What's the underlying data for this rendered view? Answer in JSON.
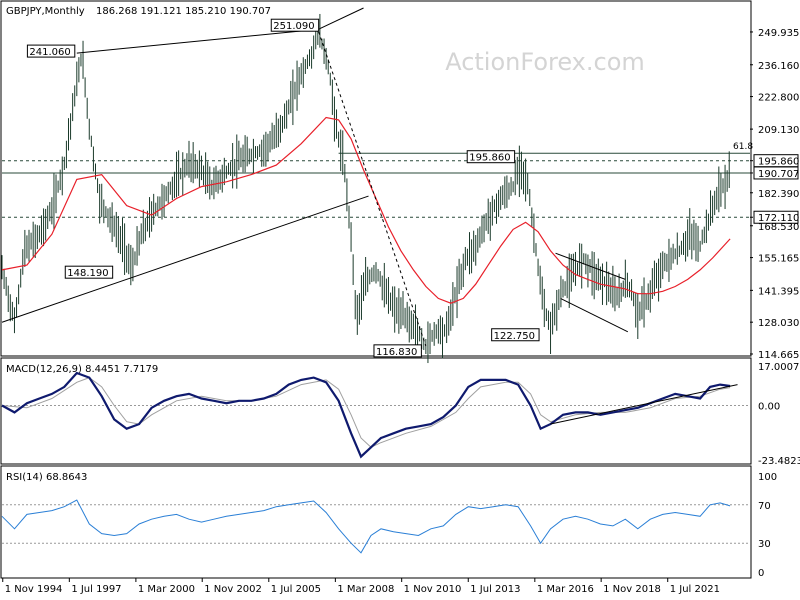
{
  "header": {
    "symbol_label": "GBPJPY,Monthly",
    "ohlc": "186.268 191.121 185.210 190.707"
  },
  "watermark": "ActionForex.com",
  "colors": {
    "price": "#1a3a2a",
    "ma": "#e8202a",
    "macd": "#0f1a6e",
    "signal": "#a0a0a0",
    "rsi": "#2a7fd6",
    "hline": "#2a4a3a"
  },
  "chart_data": [
    {
      "type": "ohlc",
      "title": "GBPJPY,Monthly",
      "ylim": [
        114.665,
        260
      ],
      "y_ticks": [
        "249.935",
        "236.160",
        "222.800",
        "209.130",
        "195.860",
        "190.707",
        "182.390",
        "172.110",
        "168.530",
        "155.165",
        "141.395",
        "128.030",
        "114.665"
      ],
      "x_ticks": [
        "1 Nov 1994",
        "1 Jul 1997",
        "1 Mar 2000",
        "1 Nov 2002",
        "1 Jul 2005",
        "1 Mar 2008",
        "1 Nov 2010",
        "1 Jul 2013",
        "1 Mar 2016",
        "1 Nov 2018",
        "1 Jul 2021"
      ],
      "levels": [
        {
          "label": "195.860",
          "value": 195.86,
          "style": "dashed"
        },
        {
          "label": "190.707",
          "value": 190.707,
          "style": "solid"
        },
        {
          "label": "172.110",
          "value": 172.11,
          "style": "dashed"
        }
      ],
      "fib_label": "61.8",
      "fib_value": 199.0,
      "annotations": [
        {
          "label": "241.060",
          "x": 1997.8,
          "y": 241.06
        },
        {
          "label": "251.090",
          "x": 2007.5,
          "y": 251.09
        },
        {
          "label": "148.190",
          "x": 1999.8,
          "y": 148.19
        },
        {
          "label": "116.830",
          "x": 2011.7,
          "y": 116.83
        },
        {
          "label": "195.860",
          "x": 2015.6,
          "y": 195.86
        },
        {
          "label": "122.750",
          "x": 2016.5,
          "y": 122.75
        }
      ],
      "price_path": [
        [
          1994.8,
          150
        ],
        [
          1995.3,
          128
        ],
        [
          1995.7,
          158
        ],
        [
          1996.3,
          165
        ],
        [
          1996.8,
          175
        ],
        [
          1997.3,
          195
        ],
        [
          1997.7,
          222
        ],
        [
          1998.0,
          241
        ],
        [
          1998.3,
          210
        ],
        [
          1998.7,
          180
        ],
        [
          1999.2,
          170
        ],
        [
          1999.7,
          160
        ],
        [
          2000.0,
          150
        ],
        [
          2000.4,
          165
        ],
        [
          2000.9,
          175
        ],
        [
          2001.3,
          180
        ],
        [
          2001.8,
          188
        ],
        [
          2002.3,
          195
        ],
        [
          2002.8,
          192
        ],
        [
          2003.2,
          185
        ],
        [
          2003.7,
          190
        ],
        [
          2004.2,
          195
        ],
        [
          2004.7,
          198
        ],
        [
          2005.2,
          200
        ],
        [
          2005.7,
          205
        ],
        [
          2006.2,
          215
        ],
        [
          2006.7,
          230
        ],
        [
          2007.2,
          240
        ],
        [
          2007.5,
          250
        ],
        [
          2007.9,
          235
        ],
        [
          2008.2,
          210
        ],
        [
          2008.5,
          195
        ],
        [
          2008.8,
          165
        ],
        [
          2009.0,
          130
        ],
        [
          2009.4,
          145
        ],
        [
          2009.8,
          150
        ],
        [
          2010.2,
          140
        ],
        [
          2010.6,
          133
        ],
        [
          2011.0,
          130
        ],
        [
          2011.4,
          125
        ],
        [
          2011.8,
          118
        ],
        [
          2012.2,
          125
        ],
        [
          2012.6,
          124
        ],
        [
          2013.0,
          140
        ],
        [
          2013.4,
          155
        ],
        [
          2013.8,
          160
        ],
        [
          2014.3,
          172
        ],
        [
          2014.8,
          180
        ],
        [
          2015.3,
          185
        ],
        [
          2015.6,
          195
        ],
        [
          2015.9,
          185
        ],
        [
          2016.2,
          160
        ],
        [
          2016.5,
          135
        ],
        [
          2016.8,
          125
        ],
        [
          2017.2,
          140
        ],
        [
          2017.7,
          148
        ],
        [
          2018.1,
          155
        ],
        [
          2018.6,
          148
        ],
        [
          2019.0,
          145
        ],
        [
          2019.4,
          138
        ],
        [
          2019.9,
          145
        ],
        [
          2020.3,
          132
        ],
        [
          2020.7,
          138
        ],
        [
          2021.2,
          150
        ],
        [
          2021.6,
          155
        ],
        [
          2022.0,
          158
        ],
        [
          2022.4,
          165
        ],
        [
          2022.8,
          160
        ],
        [
          2023.1,
          170
        ],
        [
          2023.5,
          182
        ],
        [
          2023.8,
          186
        ],
        [
          2024.0,
          190
        ]
      ],
      "ma_path": [
        [
          1994.8,
          150
        ],
        [
          1995.8,
          152
        ],
        [
          1996.8,
          165
        ],
        [
          1997.8,
          188
        ],
        [
          1998.8,
          190
        ],
        [
          1999.8,
          177
        ],
        [
          2000.8,
          173
        ],
        [
          2001.8,
          180
        ],
        [
          2002.8,
          185
        ],
        [
          2003.8,
          187
        ],
        [
          2004.8,
          190
        ],
        [
          2005.8,
          194
        ],
        [
          2006.8,
          203
        ],
        [
          2007.8,
          214
        ],
        [
          2008.3,
          213
        ],
        [
          2008.8,
          205
        ],
        [
          2009.3,
          192
        ],
        [
          2009.8,
          180
        ],
        [
          2010.3,
          168
        ],
        [
          2010.8,
          158
        ],
        [
          2011.3,
          150
        ],
        [
          2011.8,
          143
        ],
        [
          2012.3,
          138
        ],
        [
          2012.8,
          136
        ],
        [
          2013.3,
          138
        ],
        [
          2013.8,
          144
        ],
        [
          2014.3,
          152
        ],
        [
          2014.8,
          160
        ],
        [
          2015.3,
          167
        ],
        [
          2015.8,
          170
        ],
        [
          2016.3,
          166
        ],
        [
          2016.8,
          158
        ],
        [
          2017.3,
          152
        ],
        [
          2017.8,
          148
        ],
        [
          2018.3,
          146
        ],
        [
          2018.8,
          144
        ],
        [
          2019.3,
          143
        ],
        [
          2019.8,
          142
        ],
        [
          2020.3,
          140
        ],
        [
          2020.8,
          140
        ],
        [
          2021.3,
          141
        ],
        [
          2021.8,
          143
        ],
        [
          2022.3,
          146
        ],
        [
          2022.8,
          150
        ],
        [
          2023.3,
          155
        ],
        [
          2024.0,
          163
        ]
      ],
      "trend_lines": [
        {
          "from": [
            1997.8,
            241.06
          ],
          "to": [
            2007.5,
            251.09
          ],
          "style": "solid"
        },
        {
          "from": [
            2007.5,
            251.09
          ],
          "to": [
            2009.3,
            260
          ],
          "style": "solid"
        },
        {
          "from": [
            1994.8,
            128
          ],
          "to": [
            2009.5,
            181
          ],
          "style": "solid"
        },
        {
          "from": [
            2007.5,
            250
          ],
          "to": [
            2011.8,
            118
          ],
          "style": "dashed"
        },
        {
          "from": [
            2017.0,
            157
          ],
          "to": [
            2019.8,
            146
          ],
          "style": "solid"
        },
        {
          "from": [
            2017.2,
            138
          ],
          "to": [
            2019.9,
            124
          ],
          "style": "solid"
        }
      ]
    },
    {
      "type": "line",
      "title": "MACD(12,26,9) 8.4451 7.7179",
      "ylim": [
        -23.4823,
        17.0007
      ],
      "y_ticks": [
        "17.0007",
        "0.00",
        "-23.4823"
      ],
      "macd_path": [
        [
          1994.8,
          0
        ],
        [
          1995.3,
          -3
        ],
        [
          1995.8,
          1
        ],
        [
          1996.3,
          3
        ],
        [
          1996.8,
          5
        ],
        [
          1997.3,
          8
        ],
        [
          1997.8,
          14
        ],
        [
          1998.3,
          12
        ],
        [
          1998.8,
          4
        ],
        [
          1999.3,
          -6
        ],
        [
          1999.8,
          -10
        ],
        [
          2000.3,
          -8
        ],
        [
          2000.8,
          -1
        ],
        [
          2001.3,
          2
        ],
        [
          2001.8,
          4
        ],
        [
          2002.3,
          5
        ],
        [
          2002.8,
          3
        ],
        [
          2003.3,
          2
        ],
        [
          2003.8,
          1
        ],
        [
          2004.3,
          2
        ],
        [
          2004.8,
          2
        ],
        [
          2005.3,
          3
        ],
        [
          2005.8,
          5
        ],
        [
          2006.3,
          9
        ],
        [
          2006.8,
          11
        ],
        [
          2007.3,
          12
        ],
        [
          2007.8,
          10
        ],
        [
          2008.3,
          2
        ],
        [
          2008.8,
          -12
        ],
        [
          2009.2,
          -22
        ],
        [
          2009.6,
          -18
        ],
        [
          2010.0,
          -14
        ],
        [
          2010.5,
          -12
        ],
        [
          2011.0,
          -10
        ],
        [
          2011.5,
          -9
        ],
        [
          2012.0,
          -8
        ],
        [
          2012.5,
          -5
        ],
        [
          2013.0,
          0
        ],
        [
          2013.5,
          8
        ],
        [
          2014.0,
          11
        ],
        [
          2014.5,
          11
        ],
        [
          2015.0,
          11
        ],
        [
          2015.5,
          9
        ],
        [
          2016.0,
          0
        ],
        [
          2016.4,
          -10
        ],
        [
          2016.8,
          -8
        ],
        [
          2017.3,
          -4
        ],
        [
          2017.8,
          -3
        ],
        [
          2018.3,
          -3
        ],
        [
          2018.8,
          -4
        ],
        [
          2019.3,
          -3
        ],
        [
          2019.8,
          -2
        ],
        [
          2020.3,
          -1
        ],
        [
          2020.8,
          1
        ],
        [
          2021.3,
          3
        ],
        [
          2021.8,
          5
        ],
        [
          2022.3,
          4
        ],
        [
          2022.8,
          3
        ],
        [
          2023.2,
          8
        ],
        [
          2023.6,
          9
        ],
        [
          2024.0,
          8.4
        ]
      ],
      "signal_path": [
        [
          1994.8,
          0
        ],
        [
          1995.8,
          -1
        ],
        [
          1996.8,
          3
        ],
        [
          1997.8,
          10
        ],
        [
          1998.3,
          12
        ],
        [
          1998.8,
          8
        ],
        [
          1999.3,
          0
        ],
        [
          1999.8,
          -7
        ],
        [
          2000.3,
          -8
        ],
        [
          2000.8,
          -4
        ],
        [
          2001.8,
          2
        ],
        [
          2002.8,
          4
        ],
        [
          2003.8,
          2
        ],
        [
          2004.8,
          2
        ],
        [
          2005.8,
          4
        ],
        [
          2006.8,
          9
        ],
        [
          2007.8,
          11
        ],
        [
          2008.3,
          7
        ],
        [
          2008.8,
          -4
        ],
        [
          2009.2,
          -14
        ],
        [
          2009.6,
          -18
        ],
        [
          2010.0,
          -16
        ],
        [
          2011.0,
          -12
        ],
        [
          2012.0,
          -9
        ],
        [
          2013.0,
          -3
        ],
        [
          2013.5,
          3
        ],
        [
          2014.0,
          8
        ],
        [
          2015.0,
          10
        ],
        [
          2015.5,
          10
        ],
        [
          2016.0,
          5
        ],
        [
          2016.4,
          -4
        ],
        [
          2016.8,
          -7
        ],
        [
          2017.8,
          -4
        ],
        [
          2018.8,
          -3
        ],
        [
          2019.8,
          -3
        ],
        [
          2020.8,
          -1
        ],
        [
          2021.8,
          3
        ],
        [
          2022.8,
          4
        ],
        [
          2023.6,
          7
        ],
        [
          2024.0,
          7.7
        ]
      ],
      "trend_line": {
        "from": [
          2016.8,
          -8
        ],
        "to": [
          2024.3,
          9
        ]
      }
    },
    {
      "type": "line",
      "title": "RSI(14) 68.8643",
      "ylim": [
        0,
        100
      ],
      "y_ticks": [
        "100",
        "70",
        "30",
        "0"
      ],
      "levels": [
        70,
        30
      ],
      "rsi_path": [
        [
          1994.8,
          58
        ],
        [
          1995.3,
          45
        ],
        [
          1995.8,
          60
        ],
        [
          1996.3,
          62
        ],
        [
          1996.8,
          64
        ],
        [
          1997.3,
          68
        ],
        [
          1997.8,
          75
        ],
        [
          1998.3,
          50
        ],
        [
          1998.8,
          40
        ],
        [
          1999.3,
          38
        ],
        [
          1999.8,
          40
        ],
        [
          2000.3,
          50
        ],
        [
          2000.8,
          55
        ],
        [
          2001.3,
          58
        ],
        [
          2001.8,
          60
        ],
        [
          2002.3,
          55
        ],
        [
          2002.8,
          52
        ],
        [
          2003.3,
          55
        ],
        [
          2003.8,
          58
        ],
        [
          2004.3,
          60
        ],
        [
          2004.8,
          62
        ],
        [
          2005.3,
          64
        ],
        [
          2005.8,
          68
        ],
        [
          2006.3,
          70
        ],
        [
          2006.8,
          72
        ],
        [
          2007.3,
          74
        ],
        [
          2007.8,
          62
        ],
        [
          2008.3,
          45
        ],
        [
          2008.8,
          30
        ],
        [
          2009.2,
          20
        ],
        [
          2009.6,
          38
        ],
        [
          2010.0,
          45
        ],
        [
          2010.5,
          42
        ],
        [
          2011.0,
          40
        ],
        [
          2011.5,
          38
        ],
        [
          2012.0,
          45
        ],
        [
          2012.5,
          48
        ],
        [
          2013.0,
          60
        ],
        [
          2013.5,
          68
        ],
        [
          2014.0,
          66
        ],
        [
          2014.5,
          68
        ],
        [
          2015.0,
          70
        ],
        [
          2015.5,
          68
        ],
        [
          2016.0,
          48
        ],
        [
          2016.4,
          30
        ],
        [
          2016.8,
          45
        ],
        [
          2017.3,
          55
        ],
        [
          2017.8,
          58
        ],
        [
          2018.3,
          55
        ],
        [
          2018.8,
          50
        ],
        [
          2019.3,
          48
        ],
        [
          2019.8,
          55
        ],
        [
          2020.3,
          45
        ],
        [
          2020.8,
          55
        ],
        [
          2021.3,
          60
        ],
        [
          2021.8,
          62
        ],
        [
          2022.3,
          60
        ],
        [
          2022.8,
          58
        ],
        [
          2023.2,
          70
        ],
        [
          2023.6,
          72
        ],
        [
          2024.0,
          68.86
        ]
      ]
    }
  ]
}
